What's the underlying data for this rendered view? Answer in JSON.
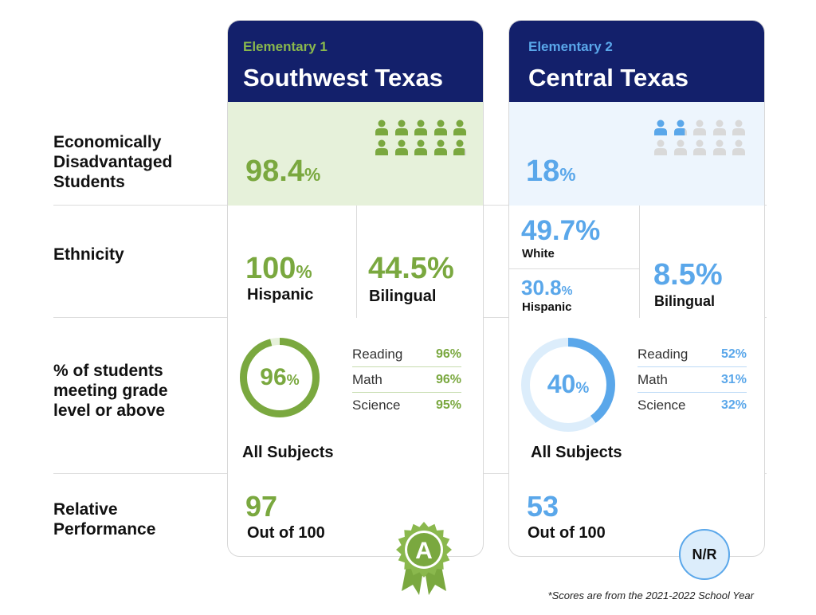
{
  "row_labels": {
    "economic": "Economically Disadvantaged Students",
    "ethnicity": "Ethnicity",
    "grade_level": "% of students meeting grade level or above",
    "relative": "Relative Performance"
  },
  "colors": {
    "green": "#7aa83f",
    "blue": "#5aa7ea",
    "navy": "#13206b",
    "green_light": "#e6f1da",
    "blue_light": "#edf5fd",
    "gray_person": "#d9d9d9"
  },
  "schools": [
    {
      "label": "Elementary 1",
      "name": "Southwest Texas",
      "econ": {
        "value": "98.4",
        "unit": "%",
        "people_total": 10,
        "people_filled": 9.84
      },
      "ethnicity": {
        "hispanic_value": "100",
        "hispanic_unit": "%",
        "hispanic_label": "Hispanic",
        "bilingual_value": "44.5%",
        "bilingual_label": "Bilingual"
      },
      "grade": {
        "all_value": "96",
        "all_unit": "%",
        "all_fraction": 0.96,
        "all_label": "All Subjects",
        "subjects": [
          {
            "name": "Reading",
            "value": "96%"
          },
          {
            "name": "Math",
            "value": "96%"
          },
          {
            "name": "Science",
            "value": "95%"
          }
        ]
      },
      "relative": {
        "score": "97",
        "out_of": "Out of 100",
        "badge": "A"
      }
    },
    {
      "label": "Elementary 2",
      "name": "Central Texas",
      "econ": {
        "value": "18",
        "unit": "%",
        "people_total": 10,
        "people_filled": 1.8
      },
      "ethnicity": {
        "white_value": "49.7%",
        "white_label": "White",
        "hispanic_value": "30.8",
        "hispanic_unit": "%",
        "hispanic_label": "Hispanic",
        "bilingual_value": "8.5%",
        "bilingual_label": "Bilingual"
      },
      "grade": {
        "all_value": "40",
        "all_unit": "%",
        "all_fraction": 0.4,
        "all_label": "All Subjects",
        "subjects": [
          {
            "name": "Reading",
            "value": "52%"
          },
          {
            "name": "Math",
            "value": "31%"
          },
          {
            "name": "Science",
            "value": "32%"
          }
        ]
      },
      "relative": {
        "score": "53",
        "out_of": "Out of 100",
        "badge": "N/R"
      }
    }
  ],
  "chart_data": {
    "type": "table",
    "columns": [
      "Southwest Texas",
      "Central Texas"
    ],
    "rows": [
      {
        "metric": "Economically Disadvantaged Students (%)",
        "values": [
          98.4,
          18
        ]
      },
      {
        "metric": "Hispanic (%)",
        "values": [
          100,
          30.8
        ]
      },
      {
        "metric": "White (%)",
        "values": [
          null,
          49.7
        ]
      },
      {
        "metric": "Bilingual (%)",
        "values": [
          44.5,
          8.5
        ]
      },
      {
        "metric": "All Subjects (%)",
        "values": [
          96,
          40
        ]
      },
      {
        "metric": "Reading (%)",
        "values": [
          96,
          52
        ]
      },
      {
        "metric": "Math (%)",
        "values": [
          96,
          31
        ]
      },
      {
        "metric": "Science (%)",
        "values": [
          95,
          32
        ]
      },
      {
        "metric": "Relative Performance (out of 100)",
        "values": [
          97,
          53
        ]
      }
    ]
  },
  "footnote": "*Scores are from the 2021-2022 School Year"
}
